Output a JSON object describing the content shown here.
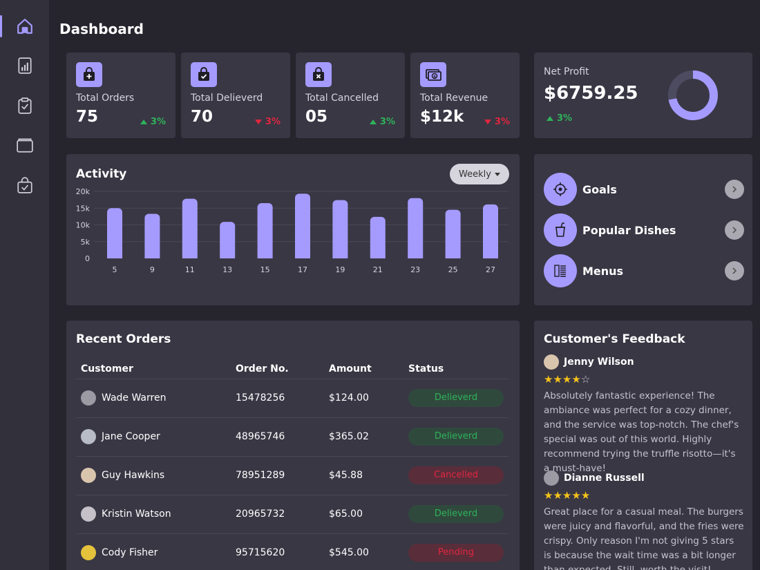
{
  "page": {
    "title": "Dashboard"
  },
  "sidebar": {
    "items": [
      {
        "icon": "home-icon",
        "active": true
      },
      {
        "icon": "chart-icon",
        "active": false
      },
      {
        "icon": "clipboard-check-icon",
        "active": false
      },
      {
        "icon": "wallet-icon",
        "active": false
      },
      {
        "icon": "bag-check-icon",
        "active": false
      }
    ]
  },
  "stats": [
    {
      "label": "Total Orders",
      "value": "75",
      "change": "3%",
      "direction": "up",
      "icon": "bag-plus-icon"
    },
    {
      "label": "Total Delieverd",
      "value": "70",
      "change": "3%",
      "direction": "down",
      "icon": "bag-check-icon"
    },
    {
      "label": "Total Cancelled",
      "value": "05",
      "change": "3%",
      "direction": "up",
      "icon": "bag-x-icon"
    },
    {
      "label": "Total Revenue",
      "value": "$12k",
      "change": "3%",
      "direction": "down",
      "icon": "money-icon"
    }
  ],
  "net_profit": {
    "label": "Net Profit",
    "value": "$6759.25",
    "change": "3%",
    "direction": "up",
    "ring_fraction": 0.72
  },
  "activity": {
    "title": "Activity",
    "dropdown": "Weekly"
  },
  "chart_data": {
    "type": "bar",
    "categories": [
      "5",
      "9",
      "11",
      "13",
      "15",
      "17",
      "19",
      "21",
      "23",
      "25",
      "27"
    ],
    "values": [
      15000,
      13300,
      17800,
      10900,
      16500,
      19300,
      17400,
      12400,
      18000,
      14500,
      16100
    ],
    "ylim": [
      0,
      20000
    ],
    "yticks": [
      "20k",
      "15k",
      "10k",
      "5k",
      "0"
    ],
    "grid": true,
    "bar_color": "#a59bff"
  },
  "quick_links": [
    {
      "label": "Goals",
      "icon": "target-icon"
    },
    {
      "label": "Popular Dishes",
      "icon": "cup-icon"
    },
    {
      "label": "Menus",
      "icon": "menu-list-icon"
    }
  ],
  "recent_orders": {
    "title": "Recent Orders",
    "columns": [
      "Customer",
      "Order No.",
      "Amount",
      "Status"
    ],
    "rows": [
      {
        "customer": "Wade Warren",
        "order": "15478256",
        "amount": "$124.00",
        "status": "Delieverd",
        "kind": "del"
      },
      {
        "customer": "Jane Cooper",
        "order": "48965746",
        "amount": "$365.02",
        "status": "Delieverd",
        "kind": "del"
      },
      {
        "customer": "Guy Hawkins",
        "order": "78951289",
        "amount": "$45.88",
        "status": "Cancelled",
        "kind": "can"
      },
      {
        "customer": "Kristin Watson",
        "order": "20965732",
        "amount": "$65.00",
        "status": "Delieverd",
        "kind": "del"
      },
      {
        "customer": "Cody Fisher",
        "order": "95715620",
        "amount": "$545.00",
        "status": "Pending",
        "kind": "pen"
      }
    ]
  },
  "feedback": {
    "title": "Customer's Feedback",
    "items": [
      {
        "name": "Jenny Wilson",
        "rating": 4,
        "text": "Absolutely fantastic experience! The ambiance was perfect for a cozy dinner, and the service was top-notch. The chef's special was out of this world. Highly recommend trying the truffle risotto—it's a must-have!"
      },
      {
        "name": "Dianne Russell",
        "rating": 5,
        "text": "Great place for a casual meal. The burgers were juicy and flavorful, and the fries were crispy. Only reason I'm not giving 5 stars is because the wait time was a bit longer than expected. Still, worth the visit!"
      }
    ]
  },
  "colors": {
    "accent": "#a59bff",
    "up": "#2fb25a",
    "down": "#e0263f",
    "card": "#393744",
    "bg": "#26252d"
  }
}
